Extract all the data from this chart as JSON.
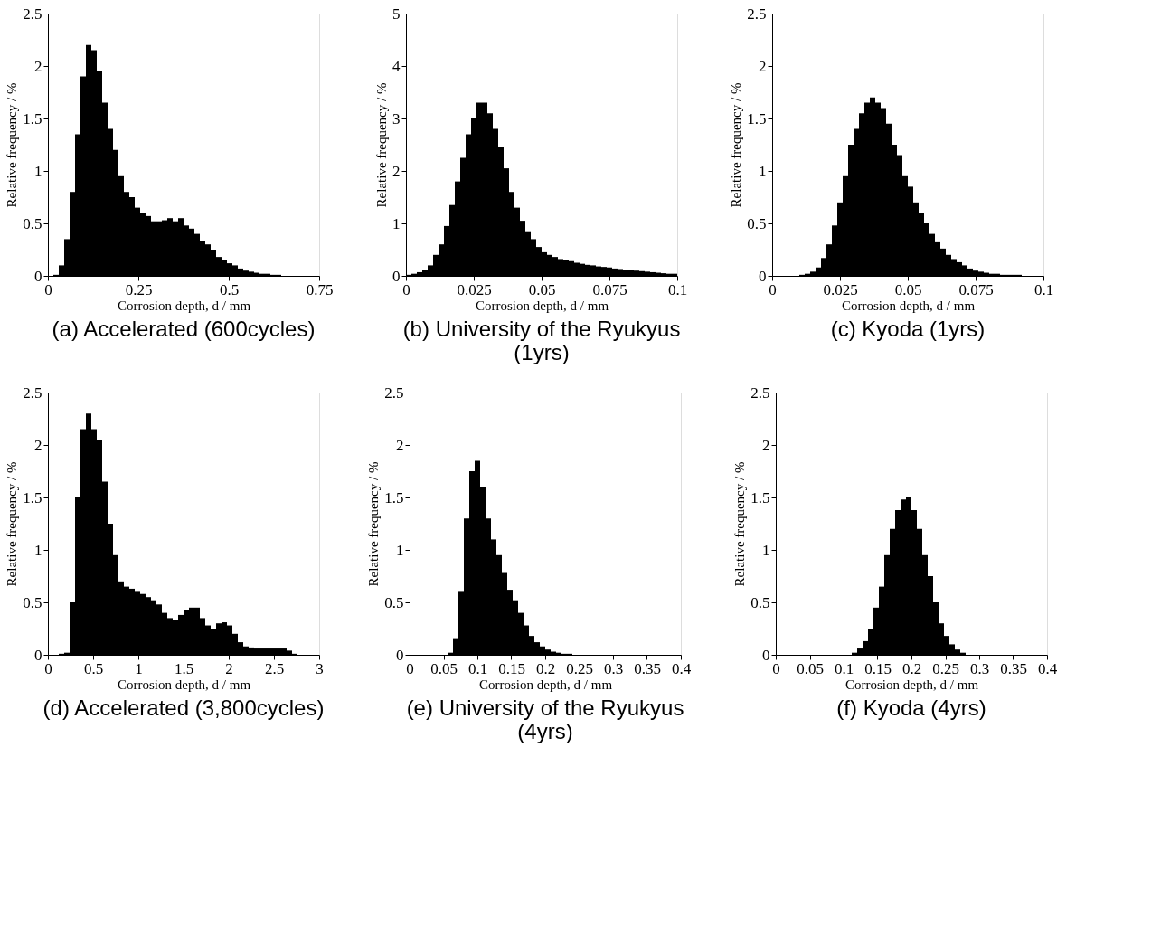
{
  "chart_data": [
    {
      "type": "histogram",
      "title": "(a) Accelerated (600cycles)",
      "xlabel": "Corrosion depth, d / mm",
      "ylabel": "Relative frequency / %",
      "color": "#000000",
      "xlim": [
        0,
        0.75
      ],
      "xticks": [
        0,
        0.25,
        0.5,
        0.75
      ],
      "ylim": [
        0,
        2.5
      ],
      "yticks": [
        0,
        0.5,
        1,
        1.5,
        2,
        2.5
      ],
      "grid": false,
      "bins": [
        0,
        0.015,
        0.03,
        0.045,
        0.06,
        0.075,
        0.09,
        0.105,
        0.12,
        0.135,
        0.15,
        0.165,
        0.18,
        0.195,
        0.21,
        0.225,
        0.24,
        0.255,
        0.27,
        0.285,
        0.3,
        0.315,
        0.33,
        0.345,
        0.36,
        0.375,
        0.39,
        0.405,
        0.42,
        0.435,
        0.45,
        0.465,
        0.48,
        0.495,
        0.51,
        0.525,
        0.54,
        0.555,
        0.57,
        0.585,
        0.6,
        0.615,
        0.63,
        0.645,
        0.66,
        0.675,
        0.69,
        0.705,
        0.72,
        0.735,
        0.75
      ],
      "values": [
        0,
        0.01,
        0.1,
        0.35,
        0.8,
        1.35,
        1.9,
        2.2,
        2.15,
        1.95,
        1.65,
        1.4,
        1.2,
        0.95,
        0.8,
        0.75,
        0.65,
        0.6,
        0.57,
        0.52,
        0.52,
        0.53,
        0.55,
        0.52,
        0.55,
        0.48,
        0.45,
        0.4,
        0.33,
        0.3,
        0.25,
        0.18,
        0.15,
        0.12,
        0.1,
        0.07,
        0.05,
        0.04,
        0.03,
        0.02,
        0.02,
        0.01,
        0.01,
        0,
        0,
        0,
        0,
        0,
        0,
        0
      ]
    },
    {
      "type": "histogram",
      "title": "(b) University of the Ryukyus (1yrs)",
      "xlabel": "Corrosion depth, d / mm",
      "ylabel": "Relative frequency / %",
      "color": "#000000",
      "xlim": [
        0,
        0.1
      ],
      "xticks": [
        0,
        0.025,
        0.05,
        0.075,
        0.1
      ],
      "ylim": [
        0,
        5
      ],
      "yticks": [
        0,
        1,
        2,
        3,
        4,
        5
      ],
      "grid": false,
      "bins": [
        0,
        0.002,
        0.004,
        0.006,
        0.008,
        0.01,
        0.012,
        0.014,
        0.016,
        0.018,
        0.02,
        0.022,
        0.024,
        0.026,
        0.028,
        0.03,
        0.032,
        0.034,
        0.036,
        0.038,
        0.04,
        0.042,
        0.044,
        0.046,
        0.048,
        0.05,
        0.052,
        0.054,
        0.056,
        0.058,
        0.06,
        0.062,
        0.064,
        0.066,
        0.068,
        0.07,
        0.072,
        0.074,
        0.076,
        0.078,
        0.08,
        0.082,
        0.084,
        0.086,
        0.088,
        0.09,
        0.092,
        0.094,
        0.096,
        0.098,
        0.1
      ],
      "values": [
        0.02,
        0.04,
        0.07,
        0.12,
        0.2,
        0.4,
        0.6,
        0.95,
        1.35,
        1.8,
        2.25,
        2.7,
        3.0,
        3.3,
        3.3,
        3.1,
        2.8,
        2.45,
        2.05,
        1.6,
        1.3,
        1.05,
        0.85,
        0.7,
        0.55,
        0.45,
        0.4,
        0.36,
        0.32,
        0.3,
        0.28,
        0.25,
        0.23,
        0.21,
        0.2,
        0.18,
        0.17,
        0.16,
        0.14,
        0.13,
        0.12,
        0.11,
        0.1,
        0.09,
        0.08,
        0.07,
        0.06,
        0.05,
        0.04,
        0.04
      ]
    },
    {
      "type": "histogram",
      "title": "(c) Kyoda (1yrs)",
      "xlabel": "Corrosion depth, d / mm",
      "ylabel": "Relative frequency / %",
      "color": "#000000",
      "xlim": [
        0,
        0.1
      ],
      "xticks": [
        0,
        0.025,
        0.05,
        0.075,
        0.1
      ],
      "ylim": [
        0,
        2.5
      ],
      "yticks": [
        0,
        0.5,
        1,
        1.5,
        2,
        2.5
      ],
      "grid": false,
      "bins": [
        0,
        0.002,
        0.004,
        0.006,
        0.008,
        0.01,
        0.012,
        0.014,
        0.016,
        0.018,
        0.02,
        0.022,
        0.024,
        0.026,
        0.028,
        0.03,
        0.032,
        0.034,
        0.036,
        0.038,
        0.04,
        0.042,
        0.044,
        0.046,
        0.048,
        0.05,
        0.052,
        0.054,
        0.056,
        0.058,
        0.06,
        0.062,
        0.064,
        0.066,
        0.068,
        0.07,
        0.072,
        0.074,
        0.076,
        0.078,
        0.08,
        0.082,
        0.084,
        0.086,
        0.088,
        0.09,
        0.092,
        0.094,
        0.096,
        0.098,
        0.1
      ],
      "values": [
        0,
        0,
        0,
        0,
        0,
        0.01,
        0.02,
        0.04,
        0.08,
        0.17,
        0.3,
        0.48,
        0.7,
        0.95,
        1.25,
        1.4,
        1.55,
        1.65,
        1.7,
        1.65,
        1.6,
        1.45,
        1.25,
        1.15,
        0.95,
        0.85,
        0.7,
        0.6,
        0.5,
        0.4,
        0.32,
        0.26,
        0.2,
        0.16,
        0.13,
        0.1,
        0.07,
        0.05,
        0.04,
        0.03,
        0.02,
        0.02,
        0.01,
        0.01,
        0.01,
        0.01,
        0,
        0,
        0,
        0
      ]
    },
    {
      "type": "histogram",
      "title": "(d) Accelerated (3,800cycles)",
      "xlabel": "Corrosion depth, d / mm",
      "ylabel": "Relative frequency / %",
      "color": "#000000",
      "xlim": [
        0,
        3
      ],
      "xticks": [
        0,
        0.5,
        1,
        1.5,
        2,
        2.5,
        3
      ],
      "ylim": [
        0,
        2.5
      ],
      "yticks": [
        0,
        0.5,
        1,
        1.5,
        2,
        2.5
      ],
      "grid": false,
      "bins": [
        0,
        0.06,
        0.12,
        0.18,
        0.24,
        0.3,
        0.36,
        0.42,
        0.48,
        0.54,
        0.6,
        0.66,
        0.72,
        0.78,
        0.84,
        0.9,
        0.96,
        1.02,
        1.08,
        1.14,
        1.2,
        1.26,
        1.32,
        1.38,
        1.44,
        1.5,
        1.56,
        1.62,
        1.68,
        1.74,
        1.8,
        1.86,
        1.92,
        1.98,
        2.04,
        2.1,
        2.16,
        2.22,
        2.28,
        2.34,
        2.4,
        2.46,
        2.52,
        2.58,
        2.64,
        2.7,
        2.76,
        2.82,
        2.88,
        2.94,
        3.0
      ],
      "values": [
        0,
        0,
        0.01,
        0.02,
        0.5,
        1.5,
        2.15,
        2.3,
        2.15,
        2.05,
        1.65,
        1.25,
        0.95,
        0.7,
        0.65,
        0.63,
        0.6,
        0.58,
        0.55,
        0.52,
        0.48,
        0.4,
        0.35,
        0.33,
        0.38,
        0.43,
        0.45,
        0.45,
        0.35,
        0.28,
        0.25,
        0.3,
        0.31,
        0.28,
        0.2,
        0.12,
        0.08,
        0.07,
        0.06,
        0.06,
        0.06,
        0.06,
        0.06,
        0.06,
        0.04,
        0.01,
        0,
        0,
        0,
        0
      ]
    },
    {
      "type": "histogram",
      "title": "(e) University of the Ryukyus (4yrs)",
      "xlabel": "Corrosion depth, d / mm",
      "ylabel": "Relative frequency / %",
      "color": "#000000",
      "xlim": [
        0,
        0.4
      ],
      "xticks": [
        0,
        0.05,
        0.1,
        0.15,
        0.2,
        0.25,
        0.3,
        0.35,
        0.4
      ],
      "ylim": [
        0,
        2.5
      ],
      "yticks": [
        0,
        0.5,
        1,
        1.5,
        2,
        2.5
      ],
      "grid": false,
      "bins": [
        0,
        0.008,
        0.016,
        0.024,
        0.032,
        0.04,
        0.048,
        0.056,
        0.064,
        0.072,
        0.08,
        0.088,
        0.096,
        0.104,
        0.112,
        0.12,
        0.128,
        0.136,
        0.144,
        0.152,
        0.16,
        0.168,
        0.176,
        0.184,
        0.192,
        0.2,
        0.208,
        0.216,
        0.224,
        0.232,
        0.24,
        0.248,
        0.256,
        0.264,
        0.272,
        0.28,
        0.288,
        0.296,
        0.304,
        0.312,
        0.32,
        0.328,
        0.336,
        0.344,
        0.352,
        0.36,
        0.368,
        0.376,
        0.384,
        0.392,
        0.4
      ],
      "values": [
        0,
        0,
        0,
        0,
        0,
        0,
        0,
        0.02,
        0.15,
        0.6,
        1.3,
        1.75,
        1.85,
        1.6,
        1.3,
        1.1,
        0.95,
        0.78,
        0.62,
        0.52,
        0.4,
        0.28,
        0.18,
        0.12,
        0.08,
        0.05,
        0.03,
        0.02,
        0.01,
        0.01,
        0,
        0,
        0,
        0,
        0,
        0,
        0,
        0,
        0,
        0,
        0,
        0,
        0,
        0,
        0,
        0,
        0,
        0,
        0,
        0
      ]
    },
    {
      "type": "histogram",
      "title": "(f) Kyoda (4yrs)",
      "xlabel": "Corrosion depth, d / mm",
      "ylabel": "Relative frequency / %",
      "color": "#000000",
      "xlim": [
        0,
        0.4
      ],
      "xticks": [
        0,
        0.05,
        0.1,
        0.15,
        0.2,
        0.25,
        0.3,
        0.35,
        0.4
      ],
      "ylim": [
        0,
        2.5
      ],
      "yticks": [
        0,
        0.5,
        1,
        1.5,
        2,
        2.5
      ],
      "grid": false,
      "bins": [
        0,
        0.008,
        0.016,
        0.024,
        0.032,
        0.04,
        0.048,
        0.056,
        0.064,
        0.072,
        0.08,
        0.088,
        0.096,
        0.104,
        0.112,
        0.12,
        0.128,
        0.136,
        0.144,
        0.152,
        0.16,
        0.168,
        0.176,
        0.184,
        0.192,
        0.2,
        0.208,
        0.216,
        0.224,
        0.232,
        0.24,
        0.248,
        0.256,
        0.264,
        0.272,
        0.28,
        0.288,
        0.296,
        0.304,
        0.312,
        0.32,
        0.328,
        0.336,
        0.344,
        0.352,
        0.36,
        0.368,
        0.376,
        0.384,
        0.392,
        0.4
      ],
      "values": [
        0,
        0,
        0,
        0,
        0,
        0,
        0,
        0,
        0,
        0,
        0,
        0,
        0,
        0,
        0.02,
        0.06,
        0.13,
        0.25,
        0.45,
        0.65,
        0.95,
        1.2,
        1.38,
        1.48,
        1.5,
        1.38,
        1.2,
        0.95,
        0.75,
        0.5,
        0.3,
        0.18,
        0.1,
        0.05,
        0.02,
        0,
        0,
        0,
        0,
        0,
        0,
        0,
        0,
        0,
        0,
        0,
        0,
        0,
        0,
        0
      ]
    }
  ]
}
